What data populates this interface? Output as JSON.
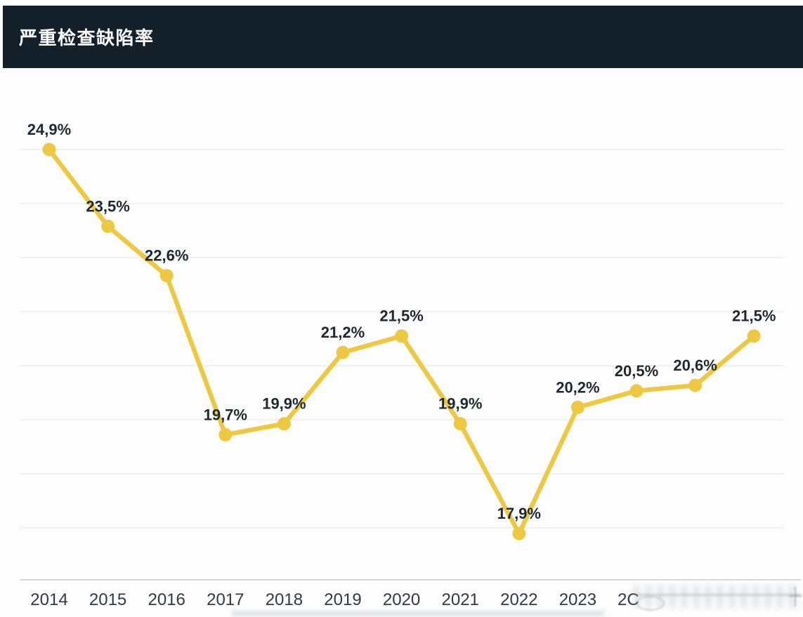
{
  "header": {
    "title": "严重检查缺陷率",
    "background_color": "#142029",
    "text_color": "#fafbfc"
  },
  "chart_data": {
    "type": "line",
    "title": "严重检查缺陷率",
    "x_labels_visible": [
      "2014",
      "2015",
      "2016",
      "2017",
      "2018",
      "2019",
      "2020",
      "2021",
      "2022",
      "2023"
    ],
    "x_label_partial": "2C",
    "x_labels_obscured_note": "year labels after 2023 are blurred out in the screenshot; only '2C' of the next label is legible",
    "values": [
      24.9,
      23.5,
      22.6,
      19.7,
      19.9,
      21.2,
      21.5,
      19.9,
      17.9,
      20.2,
      20.5,
      20.6,
      21.5
    ],
    "point_labels": [
      "24,9%",
      "23,5%",
      "22,6%",
      "19,7%",
      "19,9%",
      "21,2%",
      "21,5%",
      "19,9%",
      "17,9%",
      "20,2%",
      "20,5%",
      "20,6%",
      "21,5%"
    ],
    "xlabel": "",
    "ylabel": "",
    "ylim": [
      17.5,
      25.4
    ],
    "grid": "horizontal",
    "legend": "none",
    "colors": {
      "line": "#edc843",
      "point_fill": "#edc843",
      "point_label": "#1e2831",
      "axis_label": "#313a44",
      "gridline": "#eaeaec",
      "axis_line": "#c8ccd0"
    }
  }
}
